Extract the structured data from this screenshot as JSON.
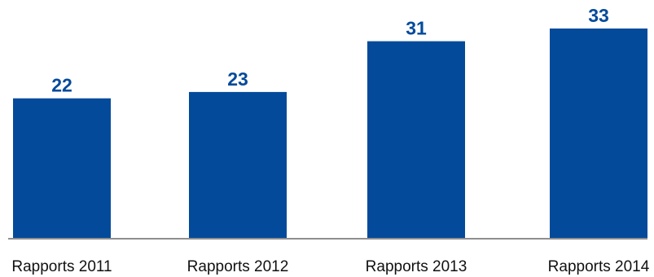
{
  "chart_data": {
    "type": "bar",
    "categories": [
      "Rapports 2011",
      "Rapports 2012",
      "Rapports 2013",
      "Rapports 2014"
    ],
    "values": [
      22,
      23,
      31,
      33
    ],
    "title": "",
    "xlabel": "",
    "ylabel": "",
    "ylim": [
      0,
      33
    ],
    "grid": false,
    "legend": "none",
    "data_labels": true,
    "colors": {
      "bar": "#034A9B",
      "data_label": "#034A9B",
      "baseline": "#8F8F8F",
      "tick_label": "#111111"
    }
  }
}
